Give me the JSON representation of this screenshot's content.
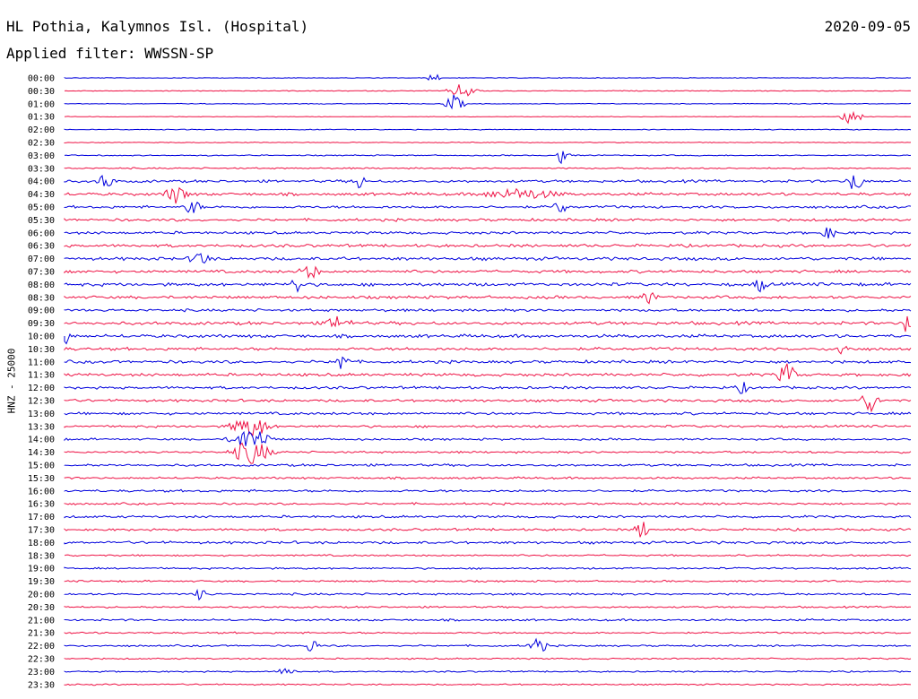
{
  "header": {
    "station": "HL Pothia, Kalymnos Isl. (Hospital)",
    "date": "2020-09-05",
    "filter": "Applied filter: WWSSN-SP"
  },
  "chart_data": {
    "type": "line",
    "title": "HL Pothia, Kalymnos Isl. (Hospital)",
    "ylabel": "HNZ - 25000",
    "rows": [
      "00:00",
      "00:30",
      "01:00",
      "01:30",
      "02:00",
      "02:30",
      "03:00",
      "03:30",
      "04:00",
      "04:30",
      "05:00",
      "05:30",
      "06:00",
      "06:30",
      "07:00",
      "07:30",
      "08:00",
      "08:30",
      "09:00",
      "09:30",
      "10:00",
      "10:30",
      "11:00",
      "11:30",
      "12:00",
      "12:30",
      "13:00",
      "13:30",
      "14:00",
      "14:30",
      "15:00",
      "15:30",
      "16:00",
      "16:30",
      "17:00",
      "17:30",
      "18:00",
      "18:30",
      "19:00",
      "19:30",
      "20:00",
      "20:30",
      "21:00",
      "21:30",
      "22:00",
      "22:30",
      "23:00",
      "23:30"
    ],
    "colors": [
      "#0000dd",
      "#ee1144"
    ],
    "noise_level": [
      0.1,
      0.15,
      0.12,
      0.1,
      0.15,
      0.15,
      0.2,
      0.25,
      0.45,
      0.5,
      0.45,
      0.45,
      0.45,
      0.5,
      0.55,
      0.5,
      0.55,
      0.5,
      0.45,
      0.55,
      0.55,
      0.5,
      0.5,
      0.5,
      0.45,
      0.45,
      0.45,
      0.4,
      0.35,
      0.35,
      0.4,
      0.35,
      0.4,
      0.35,
      0.4,
      0.4,
      0.45,
      0.3,
      0.3,
      0.3,
      0.35,
      0.3,
      0.35,
      0.3,
      0.3,
      0.25,
      0.25,
      0.25
    ]
  }
}
